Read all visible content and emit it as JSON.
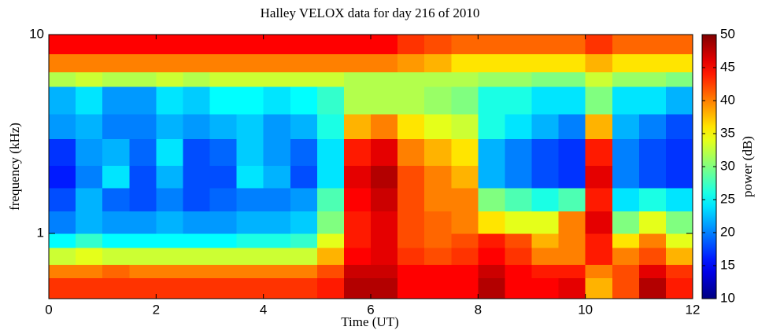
{
  "chart_data": {
    "type": "heatmap",
    "title": "Halley VELOX data for day 216 of 2010",
    "xlabel": "Time (UT)",
    "ylabel": "frequency (kHz)",
    "x_edges": [
      0,
      0.5,
      1,
      1.5,
      2,
      2.5,
      3,
      3.5,
      4,
      4.5,
      5,
      5.5,
      6,
      6.5,
      7,
      7.5,
      8,
      8.5,
      9,
      9.5,
      10,
      10.5,
      11,
      11.5,
      12
    ],
    "y_edges": [
      0.47,
      0.6,
      0.7,
      0.85,
      1,
      1.3,
      1.7,
      2.2,
      3,
      4,
      5.5,
      6.5,
      8,
      10
    ],
    "z": [
      [
        43,
        43,
        43,
        43,
        43,
        43,
        43,
        43,
        43,
        43,
        44,
        48,
        48,
        45,
        45,
        45,
        48,
        45,
        45,
        46,
        38,
        42,
        48,
        44
      ],
      [
        40,
        40,
        41,
        40,
        40,
        40,
        40,
        40,
        40,
        40,
        42,
        47,
        47,
        45,
        45,
        45,
        47,
        45,
        44,
        44,
        40,
        42,
        46,
        43
      ],
      [
        33,
        34,
        33,
        33,
        33,
        33,
        33,
        33,
        33,
        33,
        38,
        45,
        46,
        43,
        42,
        43,
        45,
        43,
        40,
        40,
        44,
        40,
        42,
        38
      ],
      [
        25,
        27,
        25,
        25,
        25,
        25,
        25,
        26,
        26,
        27,
        34,
        44,
        46,
        42,
        41,
        42,
        44,
        42,
        38,
        40,
        44,
        36,
        40,
        34
      ],
      [
        20,
        22,
        21,
        21,
        22,
        21,
        21,
        22,
        22,
        23,
        30,
        44,
        46,
        42,
        41,
        40,
        36,
        34,
        34,
        40,
        46,
        30,
        34,
        30
      ],
      [
        18,
        22,
        19,
        18,
        20,
        18,
        19,
        20,
        20,
        21,
        28,
        45,
        47,
        42,
        40,
        40,
        30,
        28,
        26,
        28,
        44,
        24,
        26,
        24
      ],
      [
        16,
        20,
        24,
        18,
        22,
        18,
        18,
        24,
        22,
        18,
        24,
        46,
        48,
        42,
        40,
        38,
        22,
        20,
        18,
        17,
        46,
        20,
        18,
        17
      ],
      [
        17,
        21,
        22,
        19,
        24,
        18,
        19,
        23,
        21,
        19,
        24,
        44,
        46,
        40,
        38,
        36,
        22,
        20,
        18,
        17,
        44,
        20,
        18,
        17
      ],
      [
        21,
        22,
        20,
        20,
        22,
        21,
        22,
        23,
        21,
        22,
        26,
        38,
        40,
        36,
        34,
        33,
        26,
        24,
        22,
        20,
        38,
        22,
        20,
        18
      ],
      [
        22,
        24,
        21,
        21,
        24,
        23,
        25,
        25,
        24,
        25,
        27,
        32,
        32,
        32,
        31,
        30,
        26,
        26,
        24,
        24,
        30,
        24,
        24,
        22
      ],
      [
        32,
        33,
        32,
        32,
        33,
        32,
        33,
        33,
        33,
        33,
        33,
        32,
        32,
        32,
        32,
        32,
        31,
        31,
        30,
        30,
        33,
        31,
        31,
        30
      ],
      [
        40,
        40,
        40,
        40,
        40,
        40,
        40,
        40,
        40,
        40,
        40,
        40,
        40,
        39,
        38,
        36,
        36,
        36,
        36,
        36,
        38,
        36,
        36,
        36
      ],
      [
        45,
        45,
        45,
        45,
        45,
        45,
        45,
        45,
        45,
        45,
        45,
        45,
        45,
        43,
        42,
        41,
        41,
        41,
        41,
        41,
        43,
        41,
        41,
        41
      ]
    ],
    "xlim": [
      0,
      12
    ],
    "xticks": [
      0,
      2,
      4,
      6,
      8,
      10,
      12
    ],
    "ylim": [
      0.47,
      10
    ],
    "yticks": [
      1,
      10
    ],
    "ylog": true,
    "colorbar": {
      "label": "power (dB)",
      "colormap": "jet",
      "clim": [
        10,
        50
      ],
      "ticks": [
        10,
        15,
        20,
        25,
        30,
        35,
        40,
        45,
        50
      ]
    }
  }
}
